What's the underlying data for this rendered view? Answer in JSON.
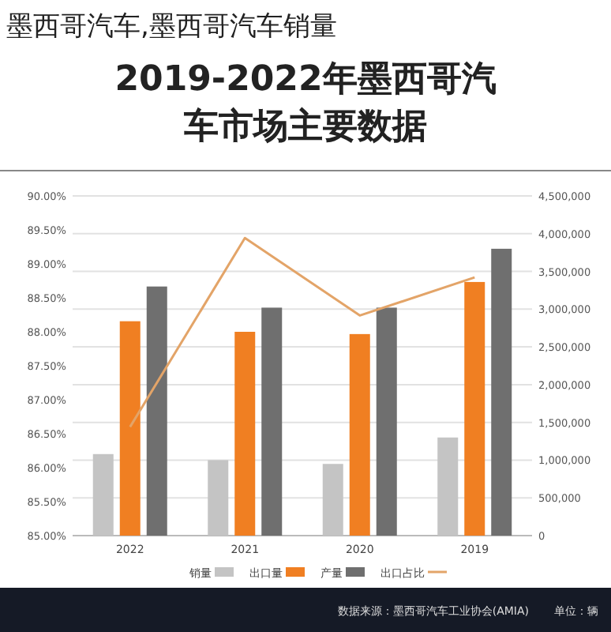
{
  "chart_data": {
    "type": "bar",
    "title": "墨西哥汽车,墨西哥汽车销量",
    "subtitle": "2019-2022年墨西哥汽车市场主要数据",
    "categories": [
      "2022",
      "2021",
      "2020",
      "2019"
    ],
    "series": [
      {
        "name": "销量",
        "color": "#c4c4c4",
        "values": [
          1080000,
          1000000,
          950000,
          1300000
        ],
        "axis": "y2"
      },
      {
        "name": "出口量",
        "color": "#f07f22",
        "values": [
          2840000,
          2700000,
          2670000,
          3360000
        ],
        "axis": "y2"
      },
      {
        "name": "产量",
        "color": "#6f6f6f",
        "values": [
          3300000,
          3020000,
          3020000,
          3800000
        ],
        "axis": "y2"
      },
      {
        "name": "出口占比",
        "type": "line",
        "color": "#e3a468",
        "values": [
          86.6,
          89.38,
          88.24,
          88.8
        ],
        "axis": "y"
      }
    ],
    "ylim": [
      85,
      90
    ],
    "yticks": [
      {
        "value": 85,
        "label": "85.00%"
      },
      {
        "value": 85.5,
        "label": "85.50%"
      },
      {
        "value": 86,
        "label": "86.00%"
      },
      {
        "value": 86.5,
        "label": "86.50%"
      },
      {
        "value": 87,
        "label": "87.00%"
      },
      {
        "value": 87.5,
        "label": "87.50%"
      },
      {
        "value": 88,
        "label": "88.00%"
      },
      {
        "value": 88.5,
        "label": "88.50%"
      },
      {
        "value": 89,
        "label": "89.00%"
      },
      {
        "value": 89.5,
        "label": "89.50%"
      },
      {
        "value": 90,
        "label": "90.00%"
      }
    ],
    "y2lim": [
      0,
      4500000
    ],
    "y2ticks": [
      0,
      {
        "value": 500000,
        "label": "500,000"
      },
      {
        "value": 1000000,
        "label": "1,000,000"
      },
      {
        "value": 1500000,
        "label": "1,500,000"
      },
      {
        "value": 2000000,
        "label": "2,000,000"
      },
      {
        "value": 2500000,
        "label": "2,500,000"
      },
      {
        "value": 3000000,
        "label": "3,000,000"
      },
      {
        "value": 3500000,
        "label": "3,500,000"
      },
      {
        "value": 4000000,
        "label": "4,000,000"
      },
      {
        "value": 4500000,
        "label": "4,500,000"
      }
    ],
    "grid": "y2",
    "legend": "bottom",
    "annotations": [
      "单位：辆",
      "数据来源：墨西哥汽车工业协会(AMIA)"
    ]
  }
}
